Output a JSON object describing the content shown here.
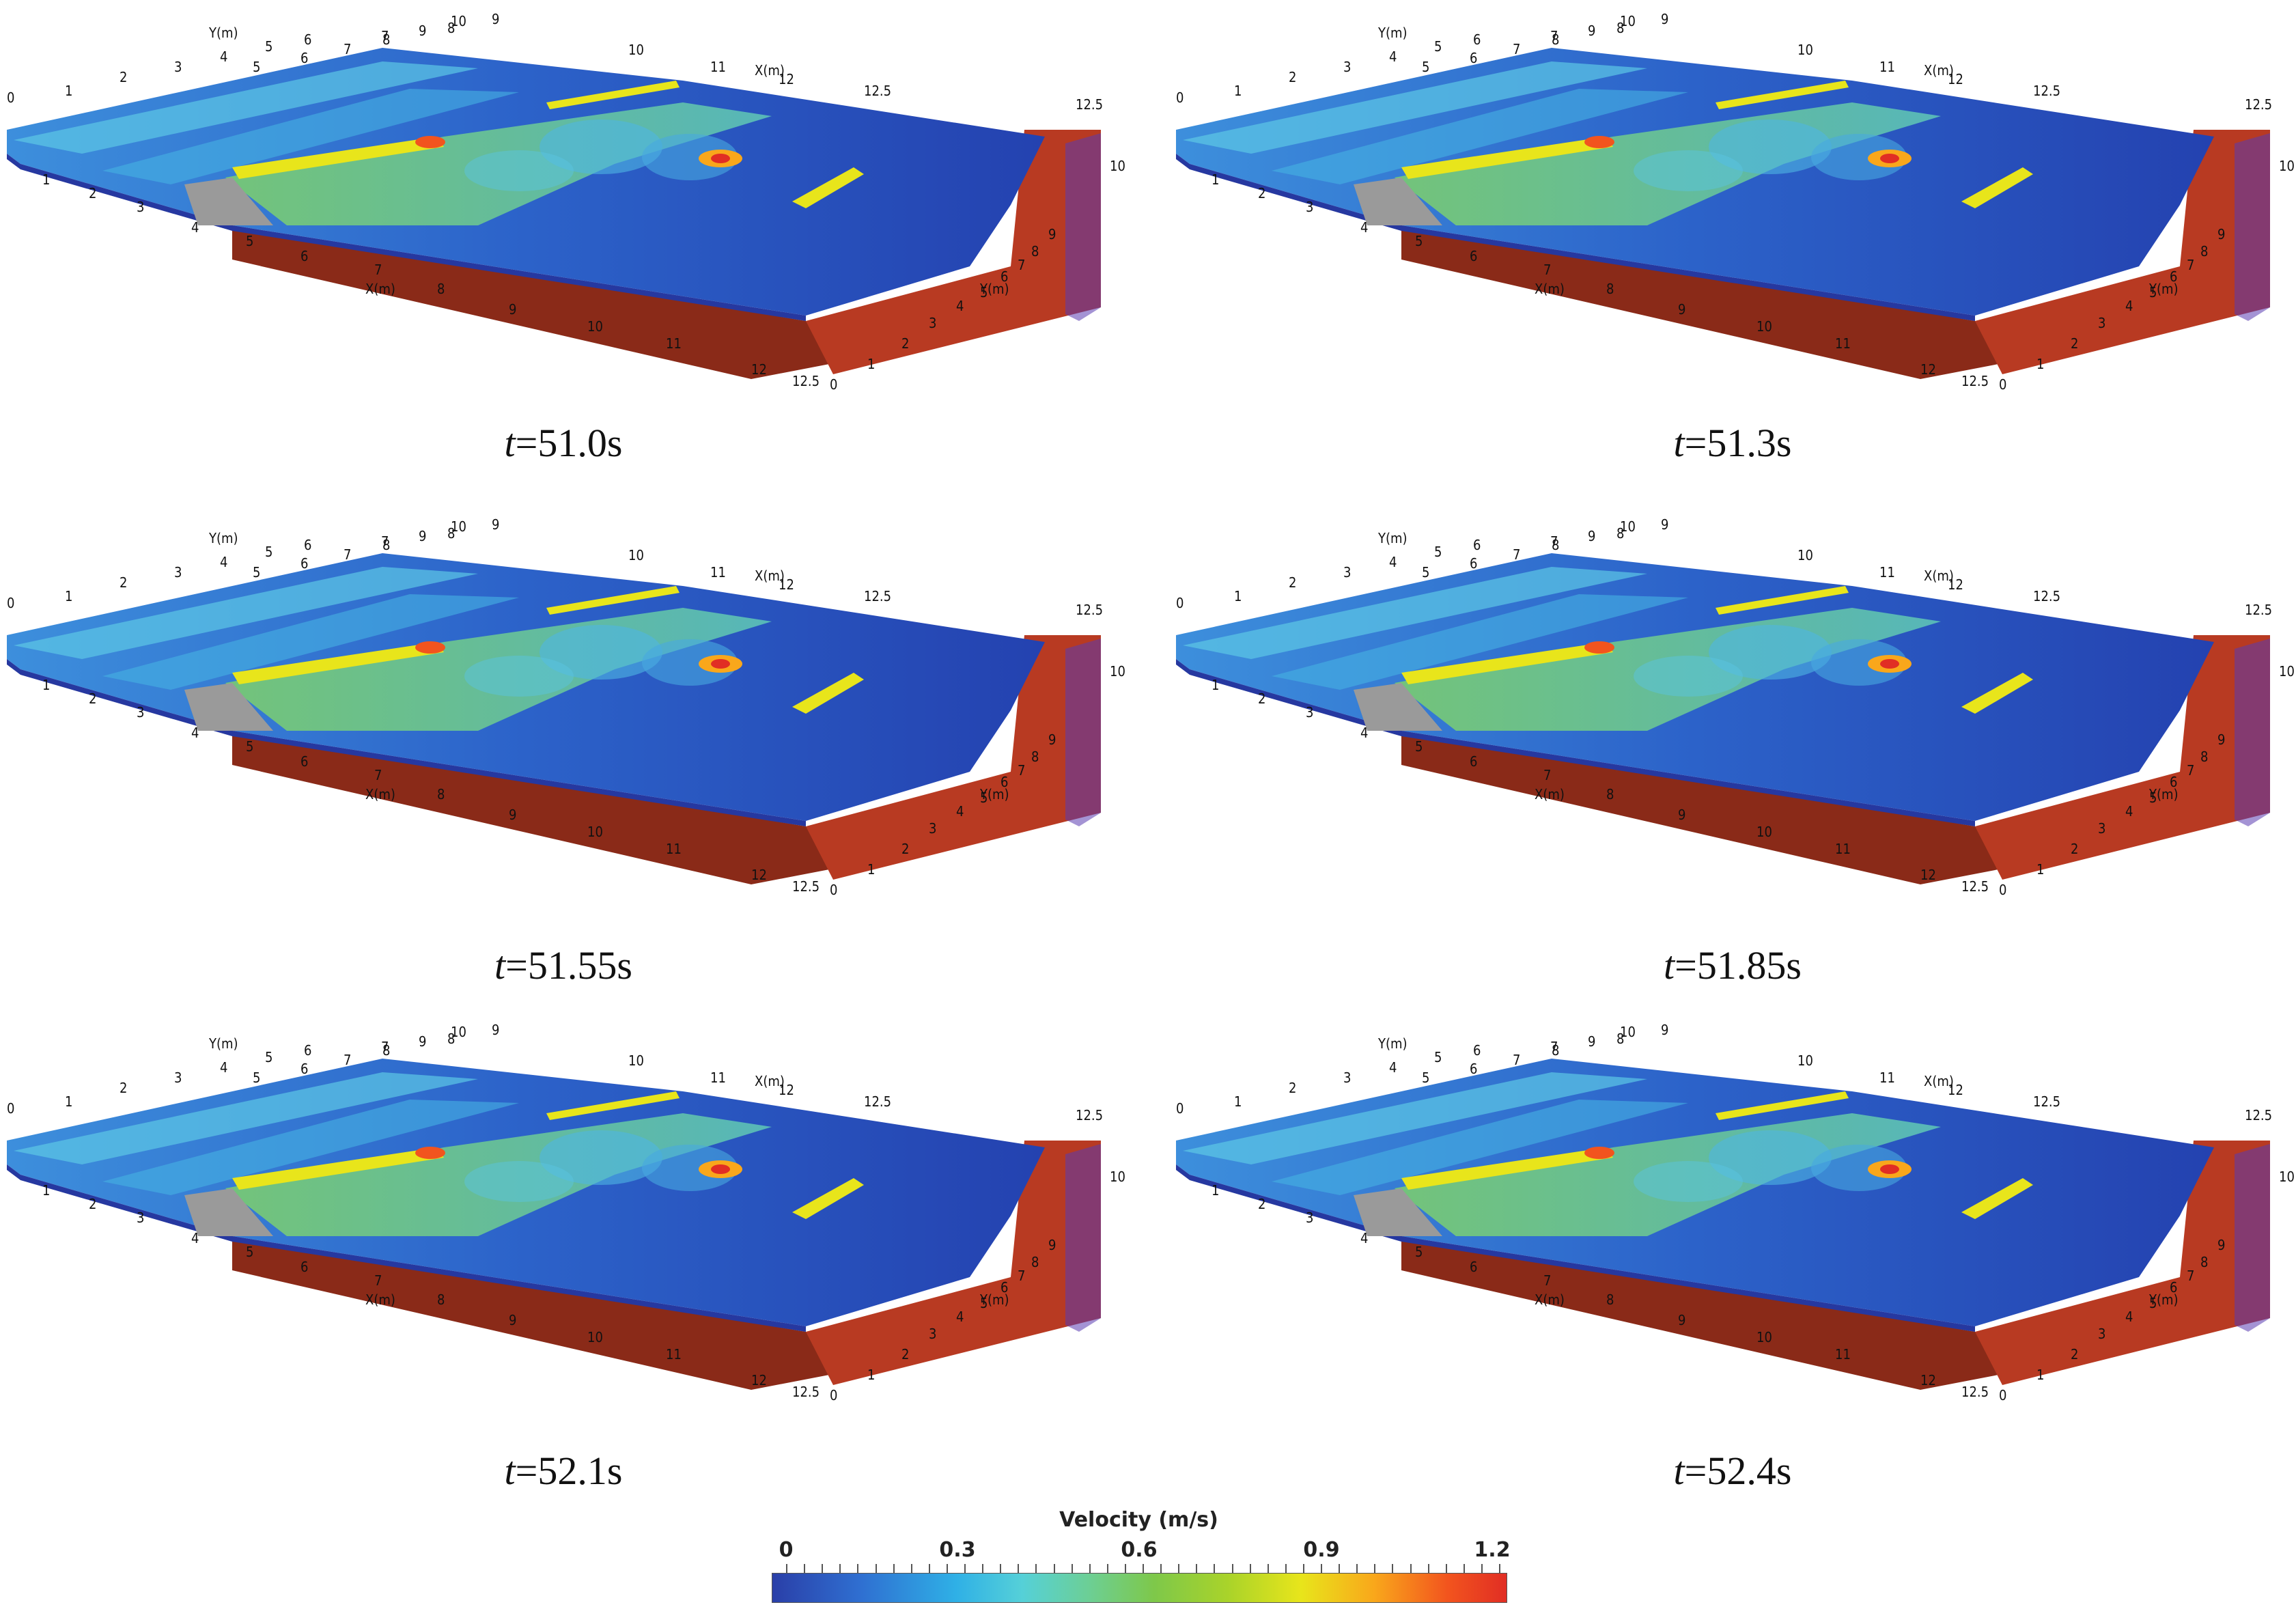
{
  "panels": [
    {
      "time_label": "t",
      "time_value": "=51.0s"
    },
    {
      "time_label": "t",
      "time_value": "=51.3s"
    },
    {
      "time_label": "t",
      "time_value": "=51.55s"
    },
    {
      "time_label": "t",
      "time_value": "=51.85s"
    },
    {
      "time_label": "t",
      "time_value": "=52.1s"
    },
    {
      "time_label": "t",
      "time_value": "=52.4s"
    }
  ],
  "axes": {
    "x_title": "X(m)",
    "y_title": "Y(m)",
    "x_ticks_front": [
      "1",
      "2",
      "3",
      "4",
      "5",
      "6",
      "7",
      "8",
      "9",
      "10",
      "11",
      "12",
      "12.5"
    ],
    "x_ticks_back": [
      "0",
      "1",
      "2",
      "3",
      "4",
      "5",
      "6",
      "7",
      "8",
      "9",
      "10",
      "11",
      "12",
      "12.5"
    ],
    "y_ticks": [
      "0",
      "1",
      "2",
      "3",
      "4",
      "5",
      "6",
      "7",
      "8",
      "9",
      "10"
    ]
  },
  "colorbar": {
    "title": "Velocity (m/s)",
    "ticks": [
      "0",
      "0.3",
      "0.6",
      "0.9",
      "1.2"
    ],
    "range": [
      0,
      1.2
    ],
    "colors": [
      "#2a3fa8",
      "#2fb0e6",
      "#7ec84a",
      "#e8e51b",
      "#e12e24"
    ]
  },
  "colors": {
    "bed": "#b83a22",
    "bed_dark": "#8a2a18",
    "obstacle": "#9a9a9a",
    "water": "#2f5fc8"
  }
}
